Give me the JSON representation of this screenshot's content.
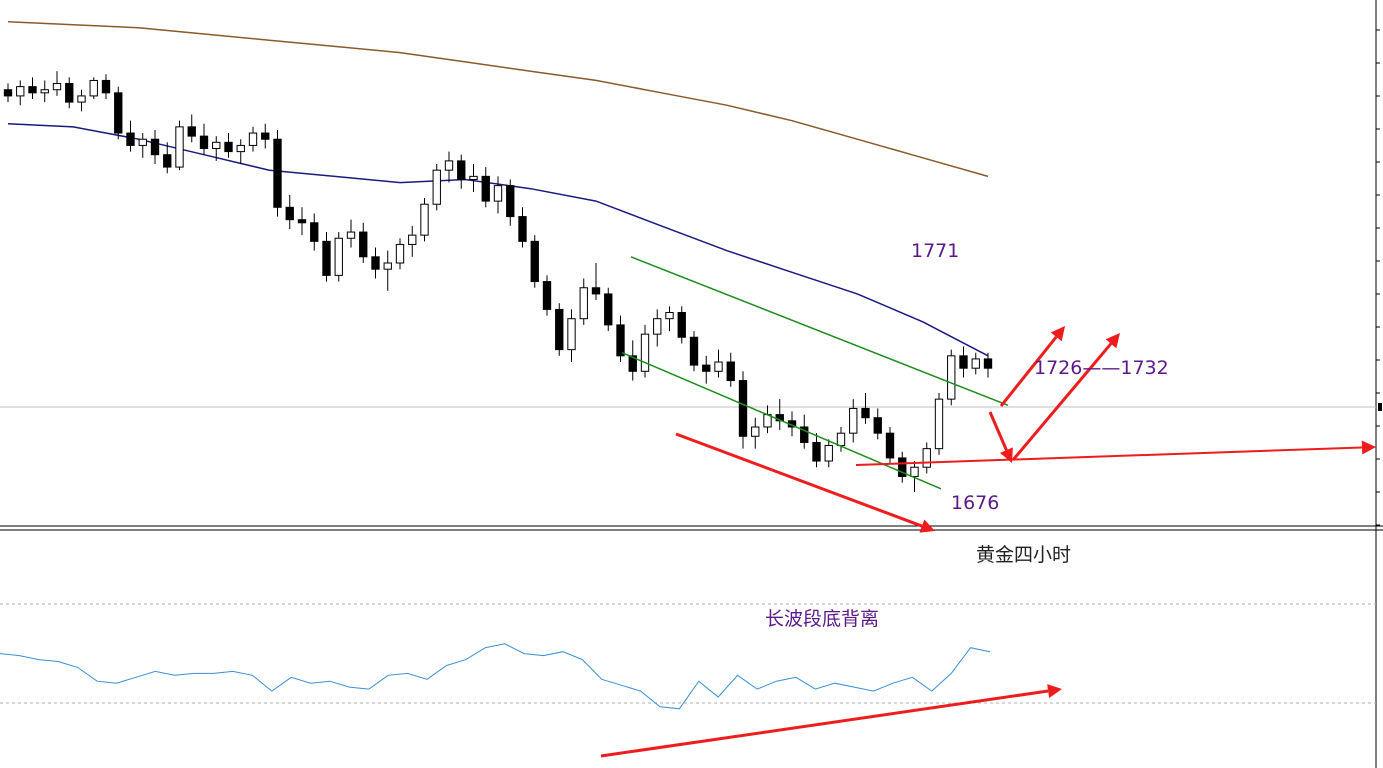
{
  "chart_data": {
    "type": "candlestick",
    "instrument_label": "黄金四小时",
    "indicator_label": "长波段底背离",
    "annotations": {
      "resistance": "1771",
      "target": "1726——1732",
      "support_low": "1676"
    },
    "colors": {
      "bull": "#ffffff",
      "bear": "#000000",
      "outline": "#000000",
      "ma_long": "#8B5A2B",
      "ma_mid": "#1a1a80",
      "channel": "#1e8c1e",
      "arrows": "#ee1c1c",
      "oscillator": "#3a8fd8",
      "text": "#5a1a8a"
    },
    "price_levels": {
      "current": 1716,
      "channel_top_start": 1752,
      "channel_top_end": 1704,
      "channel_bottom_start": 1721,
      "channel_bottom_end": 1677
    },
    "candles": [
      [
        1806,
        1808,
        1802,
        1804
      ],
      [
        1804,
        1809,
        1801,
        1807
      ],
      [
        1807,
        1810,
        1803,
        1805
      ],
      [
        1805,
        1809,
        1802,
        1806
      ],
      [
        1806,
        1812,
        1804,
        1808
      ],
      [
        1808,
        1810,
        1800,
        1802
      ],
      [
        1802,
        1806,
        1799,
        1804
      ],
      [
        1804,
        1810,
        1803,
        1809
      ],
      [
        1809,
        1811,
        1803,
        1805
      ],
      [
        1805,
        1807,
        1790,
        1792
      ],
      [
        1792,
        1796,
        1786,
        1788
      ],
      [
        1788,
        1792,
        1784,
        1790
      ],
      [
        1790,
        1793,
        1782,
        1785
      ],
      [
        1785,
        1789,
        1779,
        1781
      ],
      [
        1781,
        1796,
        1780,
        1794
      ],
      [
        1794,
        1798,
        1789,
        1791
      ],
      [
        1791,
        1795,
        1785,
        1787
      ],
      [
        1787,
        1791,
        1783,
        1789
      ],
      [
        1789,
        1792,
        1784,
        1786
      ],
      [
        1786,
        1790,
        1782,
        1788
      ],
      [
        1788,
        1794,
        1786,
        1792
      ],
      [
        1792,
        1795,
        1787,
        1790
      ],
      [
        1790,
        1793,
        1765,
        1768
      ],
      [
        1768,
        1772,
        1761,
        1764
      ],
      [
        1764,
        1768,
        1759,
        1763
      ],
      [
        1763,
        1766,
        1754,
        1757
      ],
      [
        1757,
        1760,
        1744,
        1746
      ],
      [
        1746,
        1760,
        1744,
        1758
      ],
      [
        1758,
        1764,
        1755,
        1760
      ],
      [
        1760,
        1763,
        1750,
        1752
      ],
      [
        1752,
        1755,
        1745,
        1748
      ],
      [
        1748,
        1754,
        1741,
        1750
      ],
      [
        1750,
        1758,
        1748,
        1756
      ],
      [
        1756,
        1762,
        1752,
        1759
      ],
      [
        1759,
        1771,
        1757,
        1769
      ],
      [
        1769,
        1782,
        1767,
        1780
      ],
      [
        1780,
        1786,
        1776,
        1783
      ],
      [
        1783,
        1785,
        1774,
        1777
      ],
      [
        1777,
        1782,
        1773,
        1778
      ],
      [
        1778,
        1781,
        1768,
        1770
      ],
      [
        1770,
        1778,
        1766,
        1775
      ],
      [
        1775,
        1777,
        1762,
        1765
      ],
      [
        1765,
        1768,
        1755,
        1757
      ],
      [
        1757,
        1759,
        1742,
        1744
      ],
      [
        1744,
        1746,
        1733,
        1735
      ],
      [
        1735,
        1737,
        1720,
        1722
      ],
      [
        1722,
        1735,
        1718,
        1732
      ],
      [
        1732,
        1745,
        1730,
        1742
      ],
      [
        1742,
        1750,
        1738,
        1740
      ],
      [
        1740,
        1742,
        1728,
        1730
      ],
      [
        1730,
        1733,
        1718,
        1720
      ],
      [
        1720,
        1725,
        1712,
        1715
      ],
      [
        1715,
        1730,
        1713,
        1727
      ],
      [
        1727,
        1735,
        1723,
        1732
      ],
      [
        1732,
        1736,
        1728,
        1734
      ],
      [
        1734,
        1736,
        1724,
        1726
      ],
      [
        1726,
        1728,
        1715,
        1717
      ],
      [
        1717,
        1720,
        1711,
        1715
      ],
      [
        1715,
        1722,
        1713,
        1718
      ],
      [
        1718,
        1721,
        1710,
        1712
      ],
      [
        1712,
        1715,
        1690,
        1694
      ],
      [
        1694,
        1700,
        1690,
        1697
      ],
      [
        1697,
        1704,
        1695,
        1701
      ],
      [
        1701,
        1706,
        1696,
        1699
      ],
      [
        1699,
        1702,
        1694,
        1697
      ],
      [
        1697,
        1701,
        1690,
        1692
      ],
      [
        1692,
        1695,
        1684,
        1686
      ],
      [
        1686,
        1693,
        1684,
        1691
      ],
      [
        1691,
        1697,
        1689,
        1695
      ],
      [
        1695,
        1706,
        1692,
        1703
      ],
      [
        1703,
        1708,
        1698,
        1700
      ],
      [
        1700,
        1703,
        1693,
        1695
      ],
      [
        1695,
        1697,
        1685,
        1687
      ],
      [
        1687,
        1689,
        1679,
        1681
      ],
      [
        1681,
        1686,
        1676,
        1684
      ],
      [
        1684,
        1692,
        1682,
        1690
      ],
      [
        1690,
        1708,
        1688,
        1706
      ],
      [
        1706,
        1722,
        1704,
        1720
      ],
      [
        1720,
        1723,
        1713,
        1716
      ],
      [
        1716,
        1721,
        1714,
        1719
      ],
      [
        1719,
        1721,
        1713,
        1716
      ]
    ],
    "ma_long": [
      1828,
      1827,
      1826,
      1824,
      1822,
      1820,
      1818,
      1815,
      1812,
      1809,
      1805,
      1801,
      1796,
      1790,
      1784,
      1778
    ],
    "ma_mid": [
      1795,
      1794,
      1790,
      1785,
      1780,
      1778,
      1776,
      1777,
      1774,
      1770,
      1762,
      1754,
      1747,
      1740,
      1731,
      1720
    ],
    "oscillator": [
      55,
      54,
      52,
      51,
      48,
      41,
      40,
      43,
      46,
      44,
      45,
      45,
      46,
      44,
      36,
      43,
      40,
      41,
      38,
      37,
      44,
      45,
      42,
      49,
      52,
      58,
      60,
      55,
      54,
      56,
      52,
      42,
      39,
      36,
      28,
      27,
      41,
      33,
      44,
      37,
      41,
      43,
      37,
      40,
      38,
      36,
      40,
      43,
      36,
      45,
      58,
      56
    ],
    "oscillator_levels": [
      70,
      30
    ]
  }
}
